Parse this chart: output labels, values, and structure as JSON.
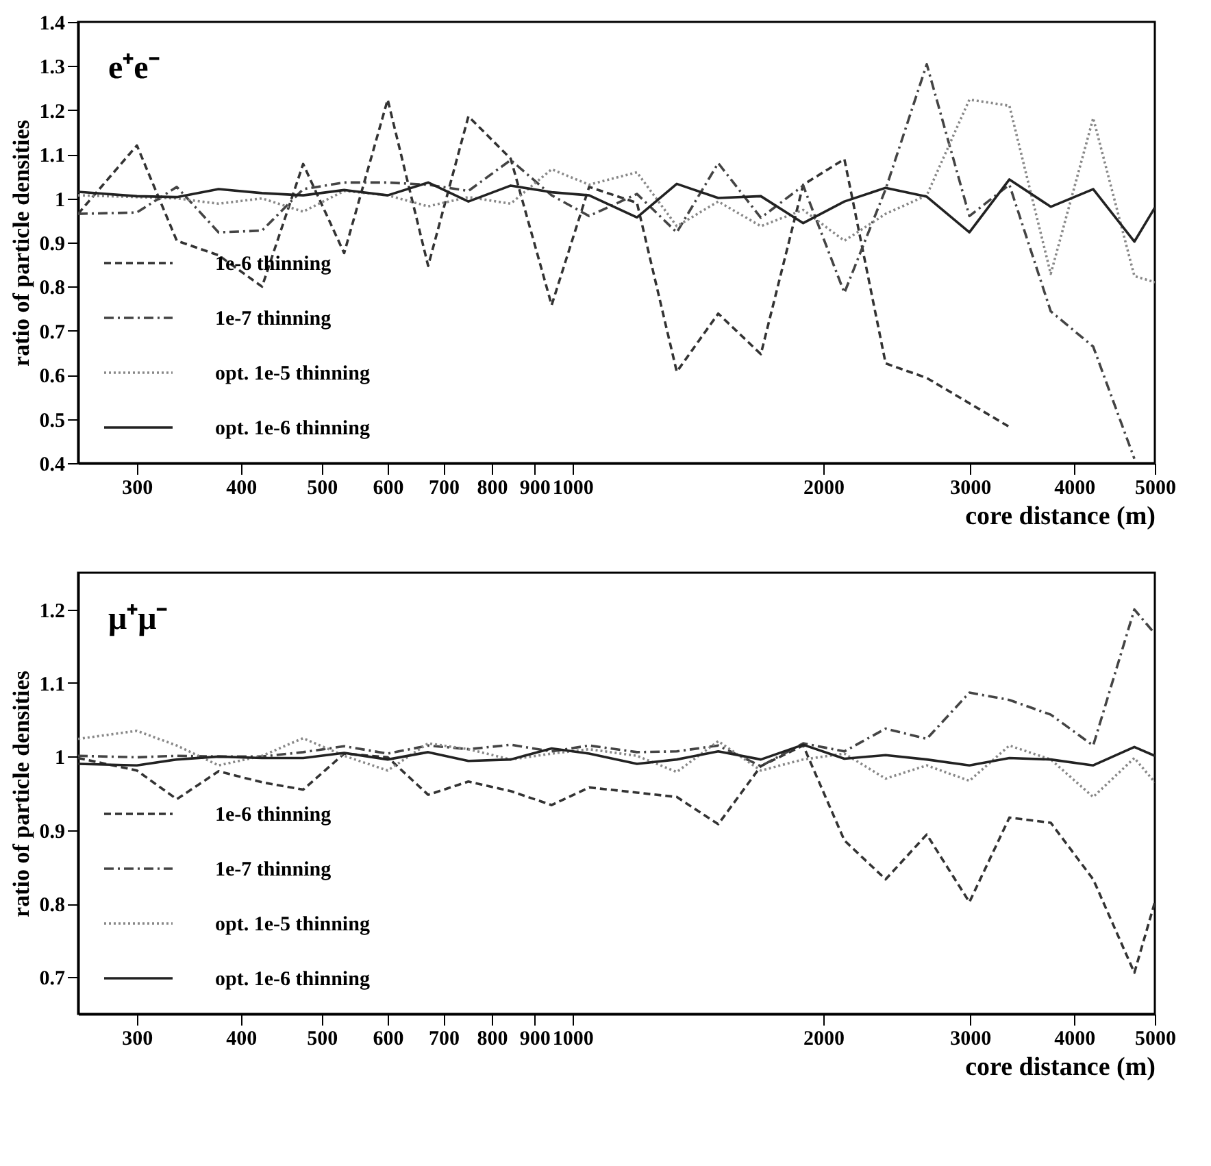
{
  "chart_data": [
    {
      "type": "line",
      "annotations": [
        "e⁺e⁻"
      ],
      "xlabel": "core distance (m)",
      "ylabel": "ratio of particle densities",
      "log": "x",
      "legend": "bottom left",
      "grid": false,
      "xlim": [
        255,
        5000
      ],
      "ylim": [
        0.4,
        1.4
      ],
      "xticks": [
        300,
        400,
        500,
        600,
        700,
        800,
        900,
        1000,
        2000,
        3000,
        4000,
        5000
      ],
      "yticks": [
        0.4,
        0.5,
        0.6,
        0.7,
        0.8,
        0.9,
        1,
        1.1,
        1.2,
        1.3,
        1.4
      ],
      "x": [
        255,
        300,
        335,
        376,
        424,
        475,
        532,
        600,
        671,
        750,
        843,
        944,
        1047,
        1195,
        1334,
        1496,
        1683,
        1892,
        2120,
        2376,
        2662,
        2995,
        3345,
        3750,
        4217,
        4725,
        5000
      ],
      "series": [
        {
          "name": "1e-6 thinning",
          "color": "#333333",
          "line_style": "dashed",
          "values": [
            0.965,
            1.12,
            0.904,
            0.871,
            0.8,
            1.078,
            0.876,
            1.224,
            0.847,
            1.186,
            1.09,
            0.758,
            1.026,
            0.99,
            0.607,
            0.739,
            0.647,
            1.031,
            1.089,
            0.626,
            0.593,
            null,
            0.482,
            null,
            null,
            null,
            null
          ]
        },
        {
          "name": "1e-7 thinning",
          "color": "#444444",
          "line_style": "dashdot",
          "values": [
            0.965,
            0.968,
            1.026,
            0.923,
            0.927,
            1.021,
            1.036,
            1.036,
            1.031,
            1.017,
            1.087,
            1.007,
            0.96,
            1.01,
            0.923,
            1.08,
            0.956,
            1.029,
            0.786,
            1.021,
            1.304,
            0.96,
            1.031,
            0.744,
            0.664,
            0.41,
            null
          ]
        },
        {
          "name": "opt. 1e-5 thinning",
          "color": "#888888",
          "line_style": "dotted",
          "values": [
            1.007,
            1.003,
            1.0,
            0.988,
            1.0,
            0.97,
            1.017,
            1.007,
            0.982,
            1.003,
            0.988,
            1.066,
            1.031,
            1.059,
            0.937,
            0.993,
            0.937,
            0.974,
            0.904,
            0.965,
            1.007,
            1.224,
            1.21,
            0.829,
            1.182,
            0.824,
            0.81
          ]
        },
        {
          "name": "opt. 1e-6 thinning",
          "color": "#222222",
          "line_style": "solid",
          "values": [
            1.015,
            1.005,
            1.003,
            1.021,
            1.012,
            1.007,
            1.019,
            1.007,
            1.036,
            0.993,
            1.029,
            1.014,
            1.007,
            0.957,
            1.033,
            1.001,
            1.005,
            0.944,
            0.993,
            1.024,
            1.004,
            0.923,
            1.043,
            0.981,
            1.021,
            0.902,
            0.979
          ]
        }
      ]
    },
    {
      "type": "line",
      "annotations": [
        "μ⁺μ⁻"
      ],
      "xlabel": "core distance (m)",
      "ylabel": "ratio of particle densities",
      "log": "x",
      "legend": "bottom left",
      "grid": false,
      "xlim": [
        255,
        5000
      ],
      "ylim": [
        0.65,
        1.25
      ],
      "xticks": [
        300,
        400,
        500,
        600,
        700,
        800,
        900,
        1000,
        2000,
        3000,
        4000,
        5000
      ],
      "yticks": [
        0.7,
        0.8,
        0.9,
        1,
        1.1,
        1.2
      ],
      "x": [
        255,
        300,
        335,
        376,
        424,
        475,
        532,
        600,
        671,
        750,
        843,
        944,
        1047,
        1195,
        1334,
        1496,
        1683,
        1892,
        2120,
        2376,
        2662,
        2995,
        3345,
        3750,
        4217,
        4725,
        5000
      ],
      "series": [
        {
          "name": "1e-6 thinning",
          "color": "#333333",
          "line_style": "dashed",
          "values": [
            0.998,
            0.981,
            0.942,
            0.98,
            0.965,
            0.955,
            1.004,
            0.999,
            0.948,
            0.966,
            0.953,
            0.934,
            0.958,
            0.951,
            0.945,
            0.908,
            0.987,
            1.015,
            0.886,
            0.833,
            0.894,
            0.802,
            0.917,
            0.91,
            0.833,
            0.706,
            0.802
          ]
        },
        {
          "name": "1e-7 thinning",
          "color": "#444444",
          "line_style": "dashdot",
          "values": [
            1.001,
            0.999,
            1.001,
            1.0,
            1.0,
            1.006,
            1.014,
            1.004,
            1.015,
            1.01,
            1.016,
            1.007,
            1.015,
            1.006,
            1.007,
            1.015,
            0.987,
            1.018,
            1.007,
            1.038,
            1.024,
            1.087,
            1.077,
            1.057,
            1.015,
            1.2,
            1.167
          ]
        },
        {
          "name": "opt. 1e-5 thinning",
          "color": "#888888",
          "line_style": "dotted",
          "values": [
            1.024,
            1.035,
            1.015,
            0.988,
            1.001,
            1.025,
            1.001,
            0.981,
            1.018,
            1.01,
            0.996,
            1.004,
            1.01,
            1.001,
            0.979,
            1.021,
            0.981,
            0.996,
            1.004,
            0.97,
            0.988,
            0.967,
            1.015,
            0.996,
            0.945,
            0.998,
            0.965
          ]
        },
        {
          "name": "opt. 1e-6 thinning",
          "color": "#222222",
          "line_style": "solid",
          "values": [
            0.99,
            0.988,
            0.996,
            1.0,
            0.998,
            0.998,
            1.005,
            0.996,
            1.006,
            0.994,
            0.996,
            1.011,
            1.004,
            0.99,
            0.996,
            1.007,
            0.996,
            1.016,
            0.997,
            1.002,
            0.996,
            0.988,
            0.998,
            0.996,
            0.988,
            1.013,
            1.001
          ]
        }
      ]
    }
  ]
}
